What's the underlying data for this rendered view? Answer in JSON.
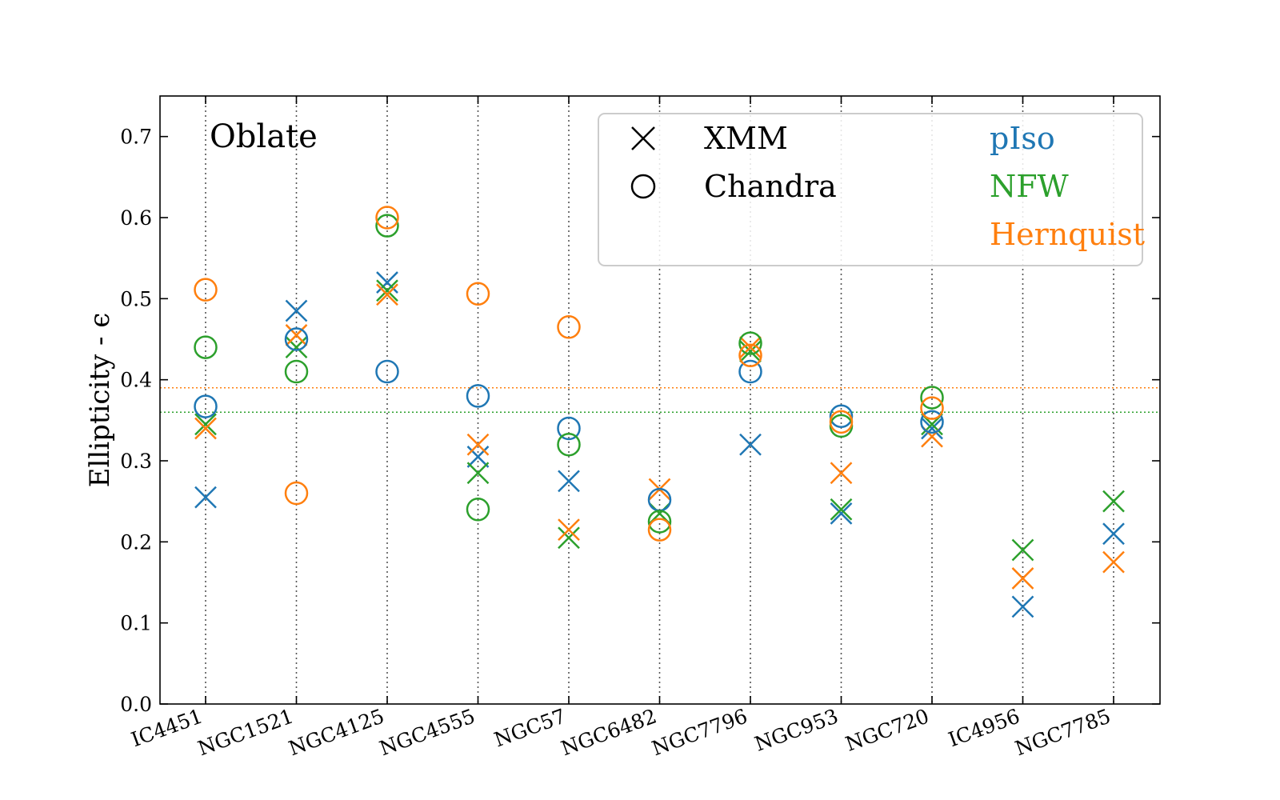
{
  "chart_data": {
    "type": "scatter",
    "annotation": "Oblate",
    "ylabel": "Ellipticity - ϵ",
    "xlabel": "",
    "ylim": [
      0,
      0.75
    ],
    "yticks": [
      0.0,
      0.1,
      0.2,
      0.3,
      0.4,
      0.5,
      0.6,
      0.7
    ],
    "ytick_labels": [
      "0.0",
      "0.1",
      "0.2",
      "0.3",
      "0.4",
      "0.5",
      "0.6",
      "0.7"
    ],
    "categories": [
      "IC4451",
      "NGC1521",
      "NGC4125",
      "NGC4555",
      "NGC57",
      "NGC6482",
      "NGC7796",
      "NGC953",
      "NGC720",
      "IC4956",
      "NGC7785"
    ],
    "grid": "vertical dotted at each category",
    "reference_lines": [
      {
        "model": "Hernquist",
        "y": 0.39,
        "color": "#ff7f0e"
      },
      {
        "model": "NFW",
        "y": 0.36,
        "color": "#2ca02c"
      }
    ],
    "legend": {
      "placement": "top-right",
      "instruments": [
        {
          "label": "XMM",
          "marker": "x"
        },
        {
          "label": "Chandra",
          "marker": "o"
        }
      ],
      "models": [
        {
          "label": "pIso",
          "color": "#1f77b4"
        },
        {
          "label": "NFW",
          "color": "#2ca02c"
        },
        {
          "label": "Hernquist",
          "color": "#ff7f0e"
        }
      ]
    },
    "series": [
      {
        "name": "pIso",
        "instrument": "XMM",
        "marker": "x",
        "color": "#1f77b4",
        "values": [
          0.255,
          0.485,
          0.52,
          0.305,
          0.275,
          null,
          0.32,
          0.235,
          0.34,
          0.12,
          0.21
        ]
      },
      {
        "name": "NFW",
        "instrument": "XMM",
        "marker": "x",
        "color": "#2ca02c",
        "values": [
          0.345,
          0.44,
          0.51,
          0.285,
          0.205,
          0.235,
          0.435,
          0.24,
          0.345,
          0.19,
          0.25
        ]
      },
      {
        "name": "Hernquist",
        "instrument": "XMM",
        "marker": "x",
        "color": "#ff7f0e",
        "values": [
          0.34,
          0.455,
          0.505,
          0.32,
          0.215,
          0.265,
          0.44,
          0.285,
          0.33,
          0.155,
          0.175
        ]
      },
      {
        "name": "pIso",
        "instrument": "Chandra",
        "marker": "o",
        "color": "#1f77b4",
        "values": [
          0.367,
          0.45,
          0.41,
          0.38,
          0.34,
          0.252,
          0.41,
          0.355,
          0.348,
          null,
          null
        ]
      },
      {
        "name": "NFW",
        "instrument": "Chandra",
        "marker": "o",
        "color": "#2ca02c",
        "values": [
          0.44,
          0.41,
          0.59,
          0.24,
          0.32,
          0.225,
          0.445,
          0.343,
          0.378,
          null,
          null
        ]
      },
      {
        "name": "Hernquist",
        "instrument": "Chandra",
        "marker": "o",
        "color": "#ff7f0e",
        "values": [
          0.511,
          0.26,
          0.6,
          0.506,
          0.465,
          0.215,
          0.43,
          0.348,
          0.365,
          null,
          null
        ]
      }
    ]
  }
}
